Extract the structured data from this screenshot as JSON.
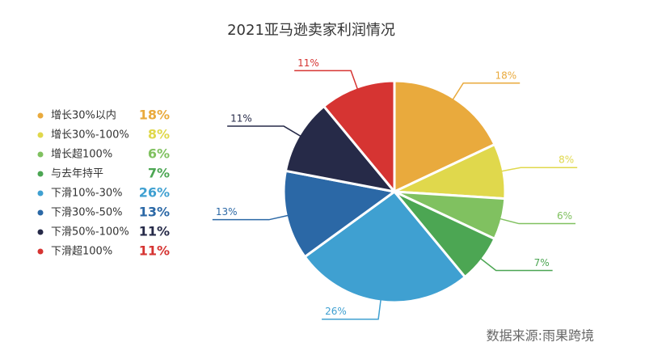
{
  "chart_data": {
    "type": "pie",
    "title": "2021亚马逊卖家利润情况",
    "categories": [
      "增长30%以内",
      "增长30%-100%",
      "增长超100%",
      "与去年持平",
      "下滑10%-30%",
      "下滑30%-50%",
      "下滑50%-100%",
      "下滑超100%"
    ],
    "values": [
      18,
      8,
      6,
      7,
      26,
      13,
      11,
      11
    ],
    "value_labels": [
      "18%",
      "8%",
      "6%",
      "7%",
      "26%",
      "13%",
      "11%",
      "11%"
    ],
    "colors": [
      "#e9aa3d",
      "#e0d84c",
      "#80c160",
      "#4ca653",
      "#3fa0d1",
      "#2b68a6",
      "#262a48",
      "#d63432"
    ],
    "source": "数据来源:雨果跨境"
  }
}
